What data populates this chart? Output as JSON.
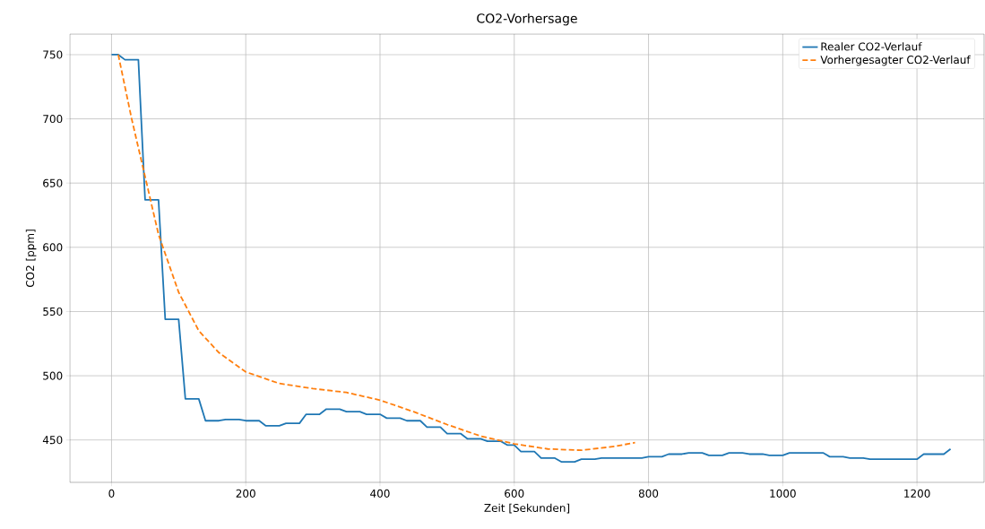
{
  "chart_data": {
    "type": "line",
    "title": "CO2-Vorhersage",
    "xlabel": "Zeit [Sekunden]",
    "ylabel": "CO2 [ppm]",
    "xlim": [
      -62,
      1300
    ],
    "ylim": [
      417,
      766
    ],
    "xticks": [
      0,
      200,
      400,
      600,
      800,
      1000,
      1200
    ],
    "yticks": [
      450,
      500,
      550,
      600,
      650,
      700,
      750
    ],
    "grid": true,
    "legend": "top right",
    "series": [
      {
        "name": "Realer CO2-Verlauf",
        "color": "#1f77b4",
        "line_style": "solid",
        "x": [
          0,
          10,
          20,
          40,
          50,
          70,
          80,
          100,
          110,
          130,
          140,
          160,
          170,
          190,
          200,
          220,
          230,
          250,
          260,
          280,
          290,
          310,
          320,
          340,
          350,
          370,
          380,
          400,
          410,
          430,
          440,
          460,
          470,
          490,
          500,
          520,
          530,
          550,
          560,
          580,
          590,
          600,
          610,
          630,
          640,
          660,
          670,
          690,
          700,
          720,
          730,
          790,
          800,
          820,
          830,
          850,
          860,
          880,
          890,
          910,
          920,
          940,
          950,
          970,
          980,
          1000,
          1010,
          1060,
          1070,
          1090,
          1100,
          1120,
          1130,
          1200,
          1210,
          1240,
          1250
        ],
        "values": [
          750,
          750,
          746,
          746,
          637,
          637,
          544,
          544,
          482,
          482,
          465,
          465,
          466,
          466,
          465,
          465,
          461,
          461,
          463,
          463,
          470,
          470,
          474,
          474,
          472,
          472,
          470,
          470,
          467,
          467,
          465,
          465,
          460,
          460,
          455,
          455,
          451,
          451,
          449,
          449,
          446,
          446,
          441,
          441,
          436,
          436,
          433,
          433,
          435,
          435,
          436,
          436,
          437,
          437,
          439,
          439,
          440,
          440,
          438,
          438,
          440,
          440,
          439,
          439,
          438,
          438,
          440,
          440,
          437,
          437,
          436,
          436,
          435,
          435,
          439,
          439,
          443
        ]
      },
      {
        "name": "Vorhergesagter CO2-Verlauf",
        "color": "#ff7f0e",
        "line_style": "dashed",
        "x": [
          10,
          30,
          50,
          70,
          100,
          130,
          160,
          200,
          250,
          300,
          350,
          400,
          450,
          500,
          550,
          600,
          650,
          700,
          750,
          780
        ],
        "values": [
          750,
          700,
          655,
          610,
          565,
          535,
          518,
          503,
          494,
          490,
          487,
          481,
          472,
          462,
          453,
          447,
          443,
          442,
          445,
          448
        ]
      }
    ]
  }
}
